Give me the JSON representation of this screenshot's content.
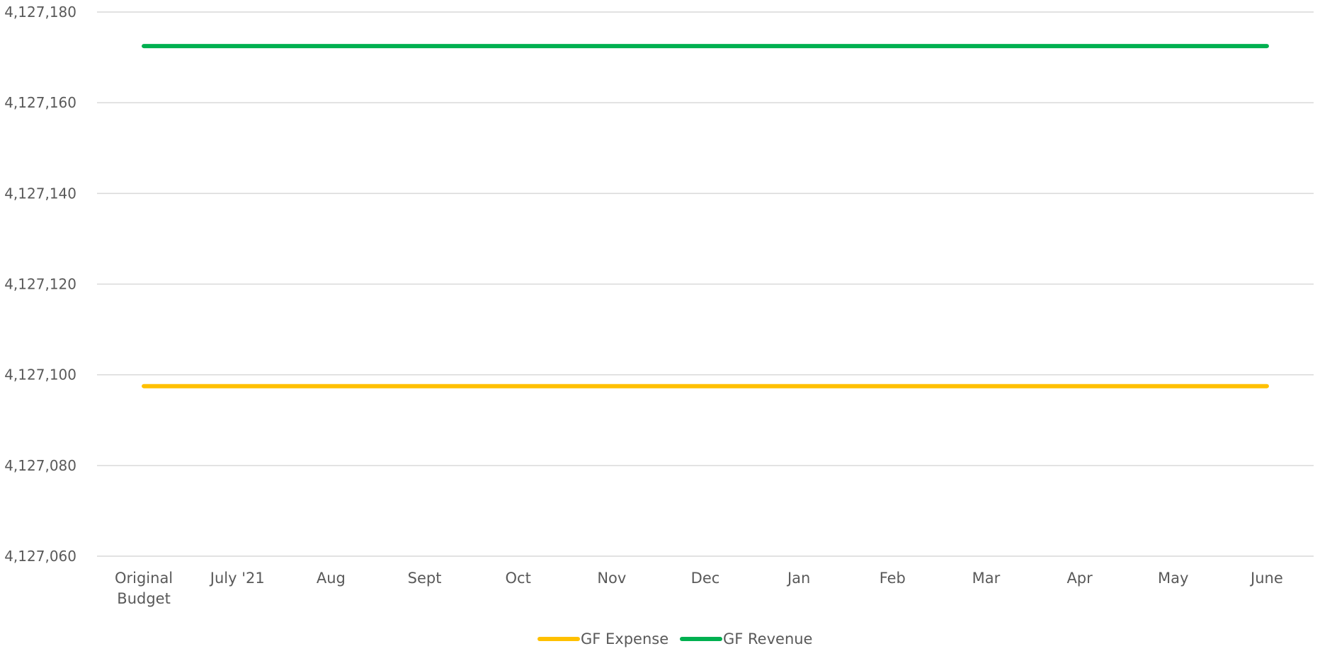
{
  "chart_data": {
    "type": "line",
    "categories": [
      [
        "Original",
        "Budget"
      ],
      [
        "July '21"
      ],
      [
        "Aug"
      ],
      [
        "Sept"
      ],
      [
        "Oct"
      ],
      [
        "Nov"
      ],
      [
        "Dec"
      ],
      [
        "Jan"
      ],
      [
        "Feb"
      ],
      [
        "Mar"
      ],
      [
        "Apr"
      ],
      [
        "May"
      ],
      [
        "June"
      ]
    ],
    "series": [
      {
        "name": "GF Expense",
        "color": "#FFC000",
        "values": [
          4127097.5,
          4127097.5,
          4127097.5,
          4127097.5,
          4127097.5,
          4127097.5,
          4127097.5,
          4127097.5,
          4127097.5,
          4127097.5,
          4127097.5,
          4127097.5,
          4127097.5
        ]
      },
      {
        "name": "GF Revenue",
        "color": "#00B050",
        "values": [
          4127172.5,
          4127172.5,
          4127172.5,
          4127172.5,
          4127172.5,
          4127172.5,
          4127172.5,
          4127172.5,
          4127172.5,
          4127172.5,
          4127172.5,
          4127172.5,
          4127172.5
        ]
      }
    ],
    "ylim": [
      4127060,
      4127180
    ],
    "yticks": [
      "4,127,060",
      "4,127,080",
      "4,127,100",
      "4,127,120",
      "4,127,140",
      "4,127,160",
      "4,127,180"
    ],
    "title": "",
    "xlabel": "",
    "ylabel": "",
    "grid": "horizontal",
    "gridColor": "#D9D9D9",
    "legendPosition": "bottom"
  }
}
